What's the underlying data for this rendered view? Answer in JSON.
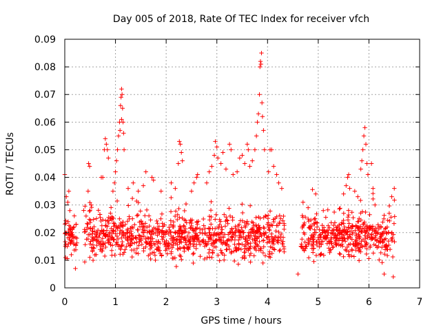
{
  "chart_data": {
    "type": "scatter",
    "title": "Day 005 of 2018, Rate Of TEC Index for receiver vfch",
    "xlabel": "GPS time / hours",
    "ylabel": "ROTI / TECUs",
    "xlim": [
      0,
      7
    ],
    "ylim": [
      0,
      0.09
    ],
    "xticks": [
      0,
      1,
      2,
      3,
      4,
      5,
      6,
      7
    ],
    "yticks": [
      0,
      0.01,
      0.02,
      0.03,
      0.04,
      0.05,
      0.06,
      0.07,
      0.08,
      0.09
    ],
    "xtick_labels": [
      "0",
      "1",
      "2",
      "3",
      "4",
      "5",
      "6",
      "7"
    ],
    "ytick_labels": [
      "0",
      "0.01",
      "0.02",
      "0.03",
      "0.04",
      "0.05",
      "0.06",
      "0.07",
      "0.08",
      "0.09"
    ],
    "grid": true,
    "marker": "+",
    "color": "#ff0000",
    "data_segments": [
      [
        0.0,
        0.24
      ],
      [
        0.37,
        1.75
      ],
      [
        1.75,
        4.33
      ],
      [
        4.65,
        6.52
      ]
    ],
    "series": [
      {
        "name": "ROTI",
        "points": [
          [
            0.0,
            0.041
          ],
          [
            0.03,
            0.033
          ],
          [
            0.06,
            0.031
          ],
          [
            0.08,
            0.035
          ],
          [
            0.1,
            0.028
          ],
          [
            0.13,
            0.012
          ],
          [
            0.18,
            0.022
          ],
          [
            0.21,
            0.007
          ],
          [
            0.05,
            0.015
          ],
          [
            0.12,
            0.019
          ],
          [
            0.42,
            0.026
          ],
          [
            0.46,
            0.035
          ],
          [
            0.47,
            0.045
          ],
          [
            0.49,
            0.044
          ],
          [
            0.52,
            0.03
          ],
          [
            0.72,
            0.04
          ],
          [
            0.75,
            0.04
          ],
          [
            0.78,
            0.05
          ],
          [
            0.8,
            0.054
          ],
          [
            0.82,
            0.052
          ],
          [
            0.84,
            0.05
          ],
          [
            0.86,
            0.047
          ],
          [
            0.95,
            0.035
          ],
          [
            0.98,
            0.038
          ],
          [
            1.0,
            0.042
          ],
          [
            1.02,
            0.046
          ],
          [
            1.04,
            0.05
          ],
          [
            1.06,
            0.055
          ],
          [
            1.08,
            0.06
          ],
          [
            1.1,
            0.066
          ],
          [
            1.11,
            0.069
          ],
          [
            1.12,
            0.072
          ],
          [
            1.13,
            0.07
          ],
          [
            1.14,
            0.065
          ],
          [
            1.15,
            0.06
          ],
          [
            1.16,
            0.056
          ],
          [
            1.17,
            0.05
          ],
          [
            1.12,
            0.061
          ],
          [
            1.09,
            0.057
          ],
          [
            1.25,
            0.036
          ],
          [
            1.35,
            0.038
          ],
          [
            1.45,
            0.035
          ],
          [
            1.55,
            0.037
          ],
          [
            1.6,
            0.042
          ],
          [
            1.72,
            0.04
          ],
          [
            1.75,
            0.039
          ],
          [
            1.9,
            0.035
          ],
          [
            2.1,
            0.038
          ],
          [
            2.18,
            0.036
          ],
          [
            2.24,
            0.045
          ],
          [
            2.26,
            0.053
          ],
          [
            2.28,
            0.052
          ],
          [
            2.3,
            0.049
          ],
          [
            2.32,
            0.046
          ],
          [
            2.5,
            0.035
          ],
          [
            2.55,
            0.038
          ],
          [
            2.6,
            0.04
          ],
          [
            2.62,
            0.041
          ],
          [
            2.8,
            0.038
          ],
          [
            2.85,
            0.042
          ],
          [
            2.9,
            0.044
          ],
          [
            2.95,
            0.048
          ],
          [
            2.97,
            0.053
          ],
          [
            3.0,
            0.051
          ],
          [
            3.02,
            0.047
          ],
          [
            3.08,
            0.045
          ],
          [
            3.12,
            0.049
          ],
          [
            3.18,
            0.043
          ],
          [
            3.25,
            0.052
          ],
          [
            3.28,
            0.05
          ],
          [
            3.32,
            0.041
          ],
          [
            3.4,
            0.042
          ],
          [
            3.45,
            0.047
          ],
          [
            3.5,
            0.048
          ],
          [
            3.55,
            0.045
          ],
          [
            3.6,
            0.052
          ],
          [
            3.62,
            0.05
          ],
          [
            3.65,
            0.044
          ],
          [
            3.7,
            0.046
          ],
          [
            3.75,
            0.05
          ],
          [
            3.78,
            0.055
          ],
          [
            3.8,
            0.06
          ],
          [
            3.82,
            0.063
          ],
          [
            3.84,
            0.07
          ],
          [
            3.85,
            0.08
          ],
          [
            3.86,
            0.082
          ],
          [
            3.87,
            0.081
          ],
          [
            3.88,
            0.085
          ],
          [
            3.89,
            0.067
          ],
          [
            3.9,
            0.062
          ],
          [
            3.92,
            0.057
          ],
          [
            3.94,
            0.05
          ],
          [
            4.02,
            0.042
          ],
          [
            4.05,
            0.05
          ],
          [
            4.08,
            0.05
          ],
          [
            4.12,
            0.044
          ],
          [
            4.18,
            0.041
          ],
          [
            4.22,
            0.038
          ],
          [
            4.28,
            0.036
          ],
          [
            4.7,
            0.031
          ],
          [
            4.8,
            0.029
          ],
          [
            4.95,
            0.034
          ],
          [
            5.1,
            0.028
          ],
          [
            5.5,
            0.034
          ],
          [
            5.55,
            0.037
          ],
          [
            5.58,
            0.04
          ],
          [
            5.6,
            0.041
          ],
          [
            5.62,
            0.036
          ],
          [
            5.72,
            0.035
          ],
          [
            5.78,
            0.033
          ],
          [
            5.84,
            0.043
          ],
          [
            5.86,
            0.046
          ],
          [
            5.88,
            0.05
          ],
          [
            5.9,
            0.055
          ],
          [
            5.92,
            0.058
          ],
          [
            5.94,
            0.052
          ],
          [
            5.96,
            0.045
          ],
          [
            5.98,
            0.041
          ],
          [
            6.05,
            0.045
          ],
          [
            6.08,
            0.036
          ],
          [
            6.12,
            0.03
          ],
          [
            6.2,
            0.022
          ],
          [
            6.36,
            0.022
          ],
          [
            6.4,
            0.027
          ],
          [
            6.45,
            0.033
          ],
          [
            6.5,
            0.036
          ],
          [
            6.3,
            0.005
          ],
          [
            6.48,
            0.004
          ],
          [
            4.6,
            0.005
          ]
        ]
      }
    ]
  }
}
